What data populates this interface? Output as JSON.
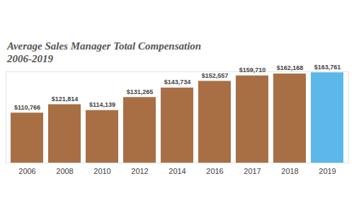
{
  "chart_data": {
    "type": "bar",
    "title": "Average Sales Manager Total Compensation",
    "subtitle": "2006-2019",
    "categories": [
      "2006",
      "2008",
      "2010",
      "2012",
      "2014",
      "2016",
      "2017",
      "2018",
      "2019"
    ],
    "values": [
      110766,
      121814,
      114139,
      131265,
      143734,
      152557,
      159710,
      162168,
      163761
    ],
    "value_labels": [
      "$110,766",
      "$121,814",
      "$114,139",
      "$131,265",
      "$143,734",
      "$152,557",
      "$159,710",
      "$162,168",
      "$163,761"
    ],
    "colors": [
      "#a86f45",
      "#a86f45",
      "#a86f45",
      "#a86f45",
      "#a86f45",
      "#a86f45",
      "#a86f45",
      "#a86f45",
      "#5bb8e8"
    ],
    "ylim": [
      45000,
      165000
    ],
    "yticks": [],
    "grid": false,
    "data_labels": true,
    "tick_labels": "x"
  }
}
